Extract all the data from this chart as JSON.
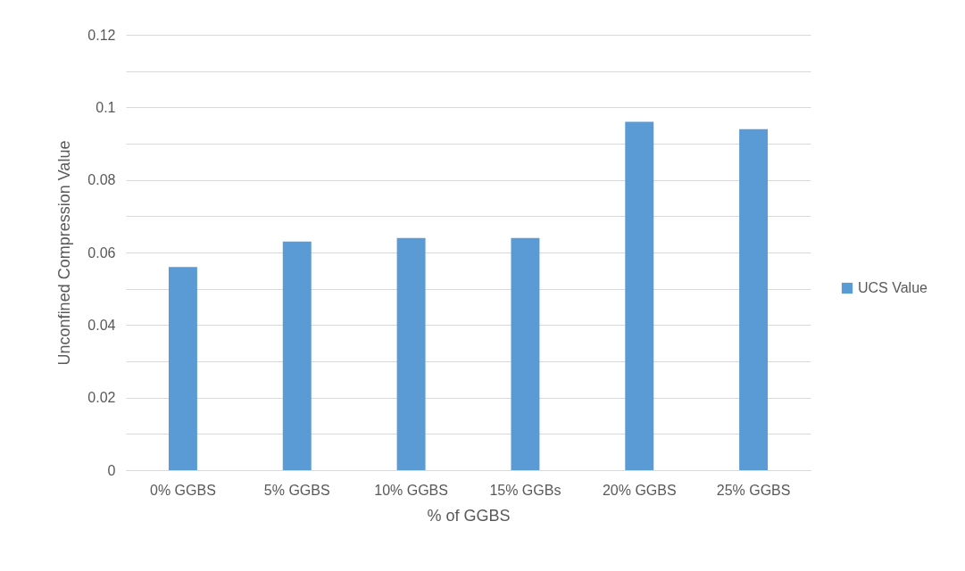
{
  "chart_data": {
    "type": "bar",
    "xlabel": "% of GGBS",
    "ylabel": "Unconfined Compression Value",
    "categories": [
      "0% GGBS",
      "5% GGBS",
      "10% GGBS",
      "15% GGBs",
      "20% GGBS",
      "25% GGBS"
    ],
    "series": [
      {
        "name": "UCS Value",
        "color": "#5b9bd5",
        "values": [
          0.056,
          0.063,
          0.064,
          0.064,
          0.096,
          0.094
        ]
      }
    ],
    "ylim": [
      0,
      0.12
    ],
    "yticks": [
      0,
      {
        "value": 0.01,
        "label": null
      },
      0.02,
      {
        "value": 0.03,
        "label": null
      },
      0.04,
      {
        "value": 0.05,
        "label": null
      },
      0.06,
      {
        "value": 0.07,
        "label": null
      },
      0.08,
      {
        "value": 0.09,
        "label": null
      },
      0.1,
      {
        "value": 0.11,
        "label": null
      },
      0.12
    ],
    "grid": "y",
    "legend": "right"
  }
}
